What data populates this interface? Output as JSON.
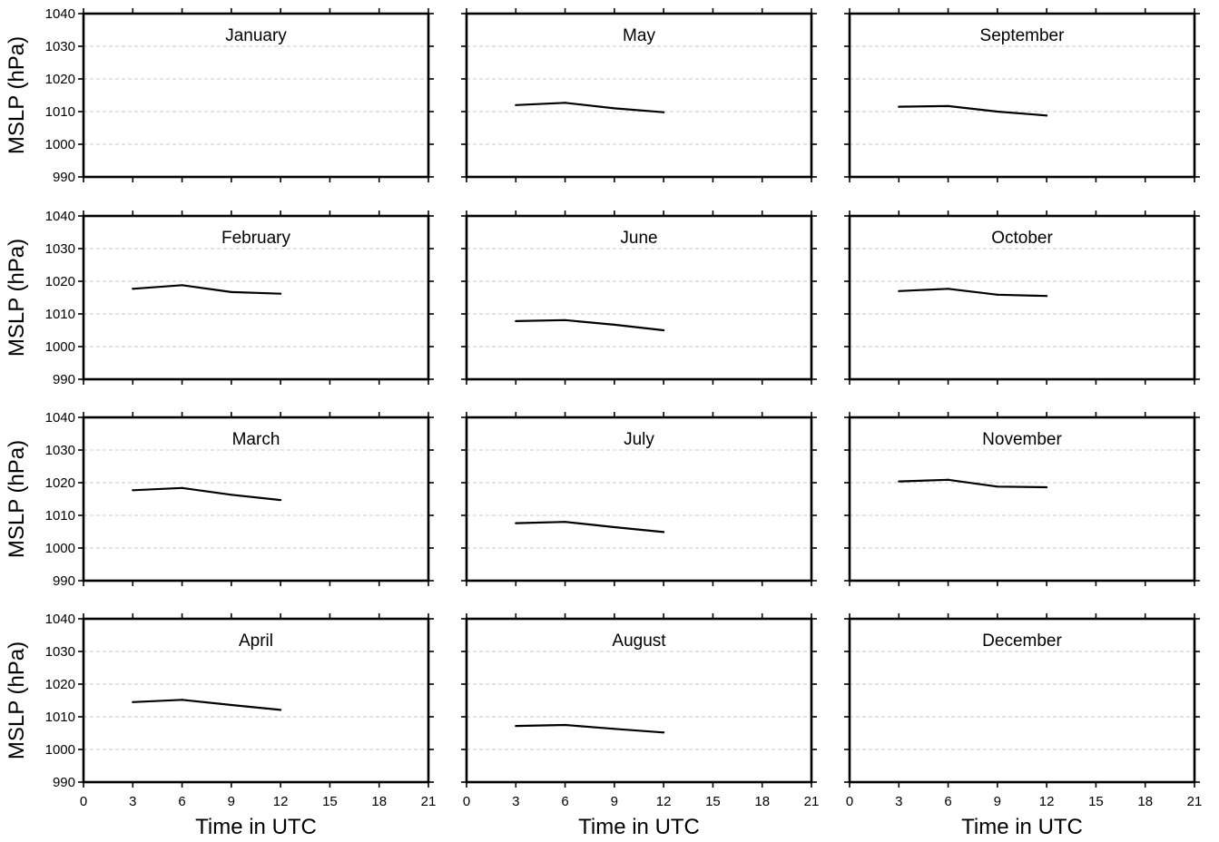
{
  "chart_data": {
    "type": "line",
    "layout": "4x3 panel grid",
    "xlabel": "Time in UTC",
    "ylabel": "MSLP (hPa)",
    "xlim": [
      0,
      21
    ],
    "ylim": [
      990,
      1040
    ],
    "xticks": [
      0,
      3,
      6,
      9,
      12,
      15,
      18,
      21
    ],
    "yticks": [
      990,
      1000,
      1010,
      1020,
      1030,
      1040
    ],
    "grid": "horizontal dashed",
    "colors": {
      "line": "#000000",
      "grid": "#c8c8c8",
      "frame": "#000000"
    },
    "panels": [
      {
        "title": "January",
        "x": [],
        "y": []
      },
      {
        "title": "May",
        "x": [
          3,
          6,
          9,
          12
        ],
        "y": [
          1012.0,
          1012.7,
          1011.0,
          1009.8
        ]
      },
      {
        "title": "September",
        "x": [
          3,
          6,
          9,
          12
        ],
        "y": [
          1011.5,
          1011.7,
          1010.0,
          1008.8
        ]
      },
      {
        "title": "February",
        "x": [
          3,
          6,
          9,
          12
        ],
        "y": [
          1017.7,
          1018.8,
          1016.7,
          1016.2
        ]
      },
      {
        "title": "June",
        "x": [
          3,
          6,
          9,
          12
        ],
        "y": [
          1007.8,
          1008.1,
          1006.7,
          1005.0
        ]
      },
      {
        "title": "October",
        "x": [
          3,
          6,
          9,
          12
        ],
        "y": [
          1017.0,
          1017.7,
          1015.9,
          1015.5
        ]
      },
      {
        "title": "March",
        "x": [
          3,
          6,
          9,
          12
        ],
        "y": [
          1017.7,
          1018.4,
          1016.3,
          1014.7
        ]
      },
      {
        "title": "July",
        "x": [
          3,
          6,
          9,
          12
        ],
        "y": [
          1007.6,
          1008.0,
          1006.4,
          1004.9
        ]
      },
      {
        "title": "November",
        "x": [
          3,
          6,
          9,
          12
        ],
        "y": [
          1020.4,
          1020.9,
          1018.8,
          1018.6
        ]
      },
      {
        "title": "April",
        "x": [
          3,
          6,
          9,
          12
        ],
        "y": [
          1014.5,
          1015.2,
          1013.6,
          1012.1
        ]
      },
      {
        "title": "August",
        "x": [
          3,
          6,
          9,
          12
        ],
        "y": [
          1007.2,
          1007.5,
          1006.3,
          1005.2
        ]
      },
      {
        "title": "December",
        "x": [],
        "y": []
      }
    ]
  }
}
